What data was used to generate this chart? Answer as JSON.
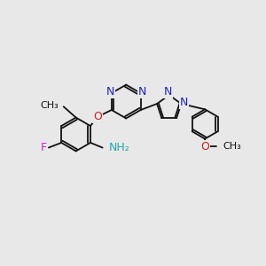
{
  "bg_color": "#e8e8e8",
  "bond_color": "#111111",
  "bond_width": 1.3,
  "N_color": "#2020cc",
  "O_color": "#cc2020",
  "F_color": "#cc20cc",
  "NH2_color": "#20aaaa",
  "figsize": [
    3.0,
    3.0
  ],
  "dpi": 100,
  "xlim": [
    0,
    10
  ],
  "ylim": [
    0,
    10
  ]
}
